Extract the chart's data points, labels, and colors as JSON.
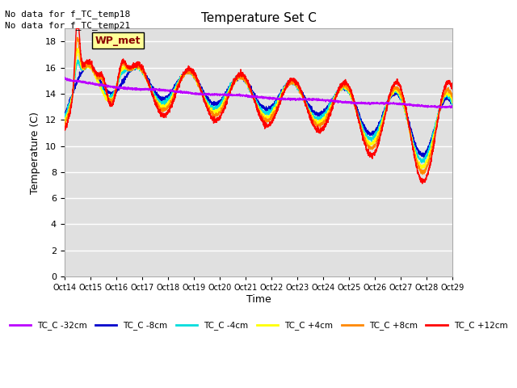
{
  "title": "Temperature Set C",
  "ylabel": "Temperature (C)",
  "xlabel": "Time",
  "annotations_top": [
    "No data for f_TC_temp18",
    "No data for f_TC_temp21"
  ],
  "wp_met_label": "WP_met",
  "xlim": [
    0,
    15
  ],
  "ylim": [
    0,
    19
  ],
  "yticks": [
    0,
    2,
    4,
    6,
    8,
    10,
    12,
    14,
    16,
    18
  ],
  "xtick_labels": [
    "Oct 14",
    "Oct 15",
    "Oct 16",
    "Oct 17",
    "Oct 18",
    "Oct 19",
    "Oct 20",
    "Oct 21",
    "Oct 22",
    "Oct 23",
    "Oct 24",
    "Oct 25",
    "Oct 26",
    "Oct 27",
    "Oct 28",
    "Oct 29"
  ],
  "legend_entries": [
    {
      "label": "TC_C -32cm",
      "color": "#BB00FF"
    },
    {
      "label": "TC_C -8cm",
      "color": "#0000CC"
    },
    {
      "label": "TC_C -4cm",
      "color": "#00DDDD"
    },
    {
      "label": "TC_C +4cm",
      "color": "#FFFF00"
    },
    {
      "label": "TC_C +8cm",
      "color": "#FF8800"
    },
    {
      "label": "TC_C +12cm",
      "color": "#FF0000"
    }
  ],
  "background_color": "#FFFFFF",
  "plot_bg_color": "#E0E0E0",
  "grid_color": "#FFFFFF",
  "figsize": [
    6.4,
    4.8
  ],
  "dpi": 100
}
